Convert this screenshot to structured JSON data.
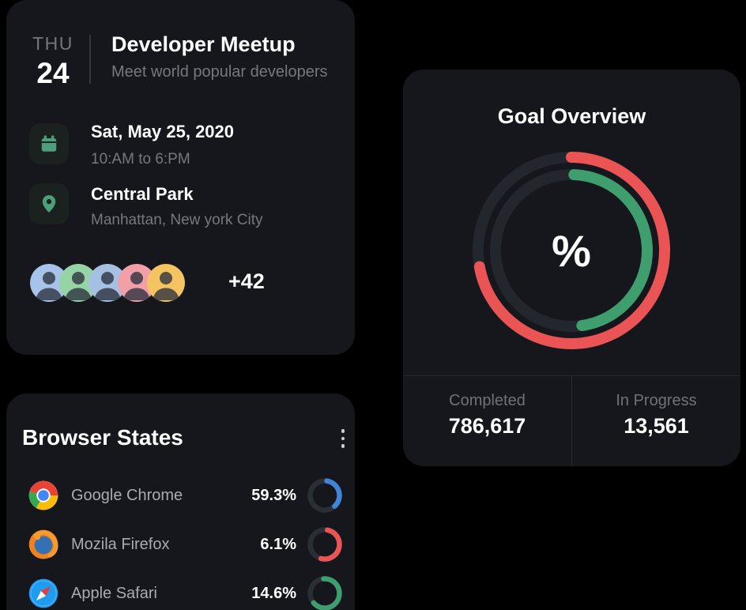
{
  "theme": {
    "page_bg": "#000000",
    "card_bg": "#15171d",
    "accent_green": "#4d9e7a",
    "danger_red": "#ea5455",
    "success_green": "#3f9e6e",
    "info_blue": "#4284d6"
  },
  "event_card": {
    "day_label": "THU",
    "day_number": "24",
    "title": "Developer Meetup",
    "subtitle": "Meet world popular developers",
    "schedule": {
      "line1": "Sat, May 25, 2020",
      "line2": "10:AM to 6:PM"
    },
    "location": {
      "line1": "Central Park",
      "line2": "Manhattan, New york City"
    },
    "attendees": {
      "extra_label": "+42",
      "avatars": [
        {
          "bg": "#a7c4e8"
        },
        {
          "bg": "#97d4a5"
        },
        {
          "bg": "#a5c0e3"
        },
        {
          "bg": "#f2a0a8"
        },
        {
          "bg": "#f4c362"
        }
      ]
    }
  },
  "goal_card": {
    "title": "Goal Overview",
    "center_label": "%",
    "stats": [
      {
        "label": "Completed",
        "value": "786,617"
      },
      {
        "label": "In Progress",
        "value": "13,561"
      }
    ],
    "chart_data": {
      "type": "radial-progress",
      "center_label": "%",
      "rings": [
        {
          "name": "completed",
          "color": "#ea5455",
          "track": "#23262d",
          "radius": 118,
          "stroke": 14,
          "start_deg": 0,
          "sweep_deg": 260
        },
        {
          "name": "in-progress",
          "color": "#3f9e6e",
          "track": "#23262d",
          "radius": 96,
          "stroke": 14,
          "start_deg": 2,
          "sweep_deg": 170
        }
      ]
    }
  },
  "browser_card": {
    "title": "Browser States",
    "rows": [
      {
        "name": "Google Chrome",
        "value": "59.3%",
        "icon": "chrome-icon",
        "ring": {
          "color": "#4284d6",
          "track": "#2a2e35",
          "start_deg": 8,
          "sweep_deg": 130
        }
      },
      {
        "name": "Mozila Firefox",
        "value": "6.1%",
        "icon": "firefox-icon",
        "ring": {
          "color": "#ea5455",
          "track": "#2a2e35",
          "start_deg": 10,
          "sweep_deg": 185
        }
      },
      {
        "name": "Apple Safari",
        "value": "14.6%",
        "icon": "safari-icon",
        "ring": {
          "color": "#3f9e6e",
          "track": "#2a2e35",
          "start_deg": -5,
          "sweep_deg": 235
        }
      }
    ]
  }
}
